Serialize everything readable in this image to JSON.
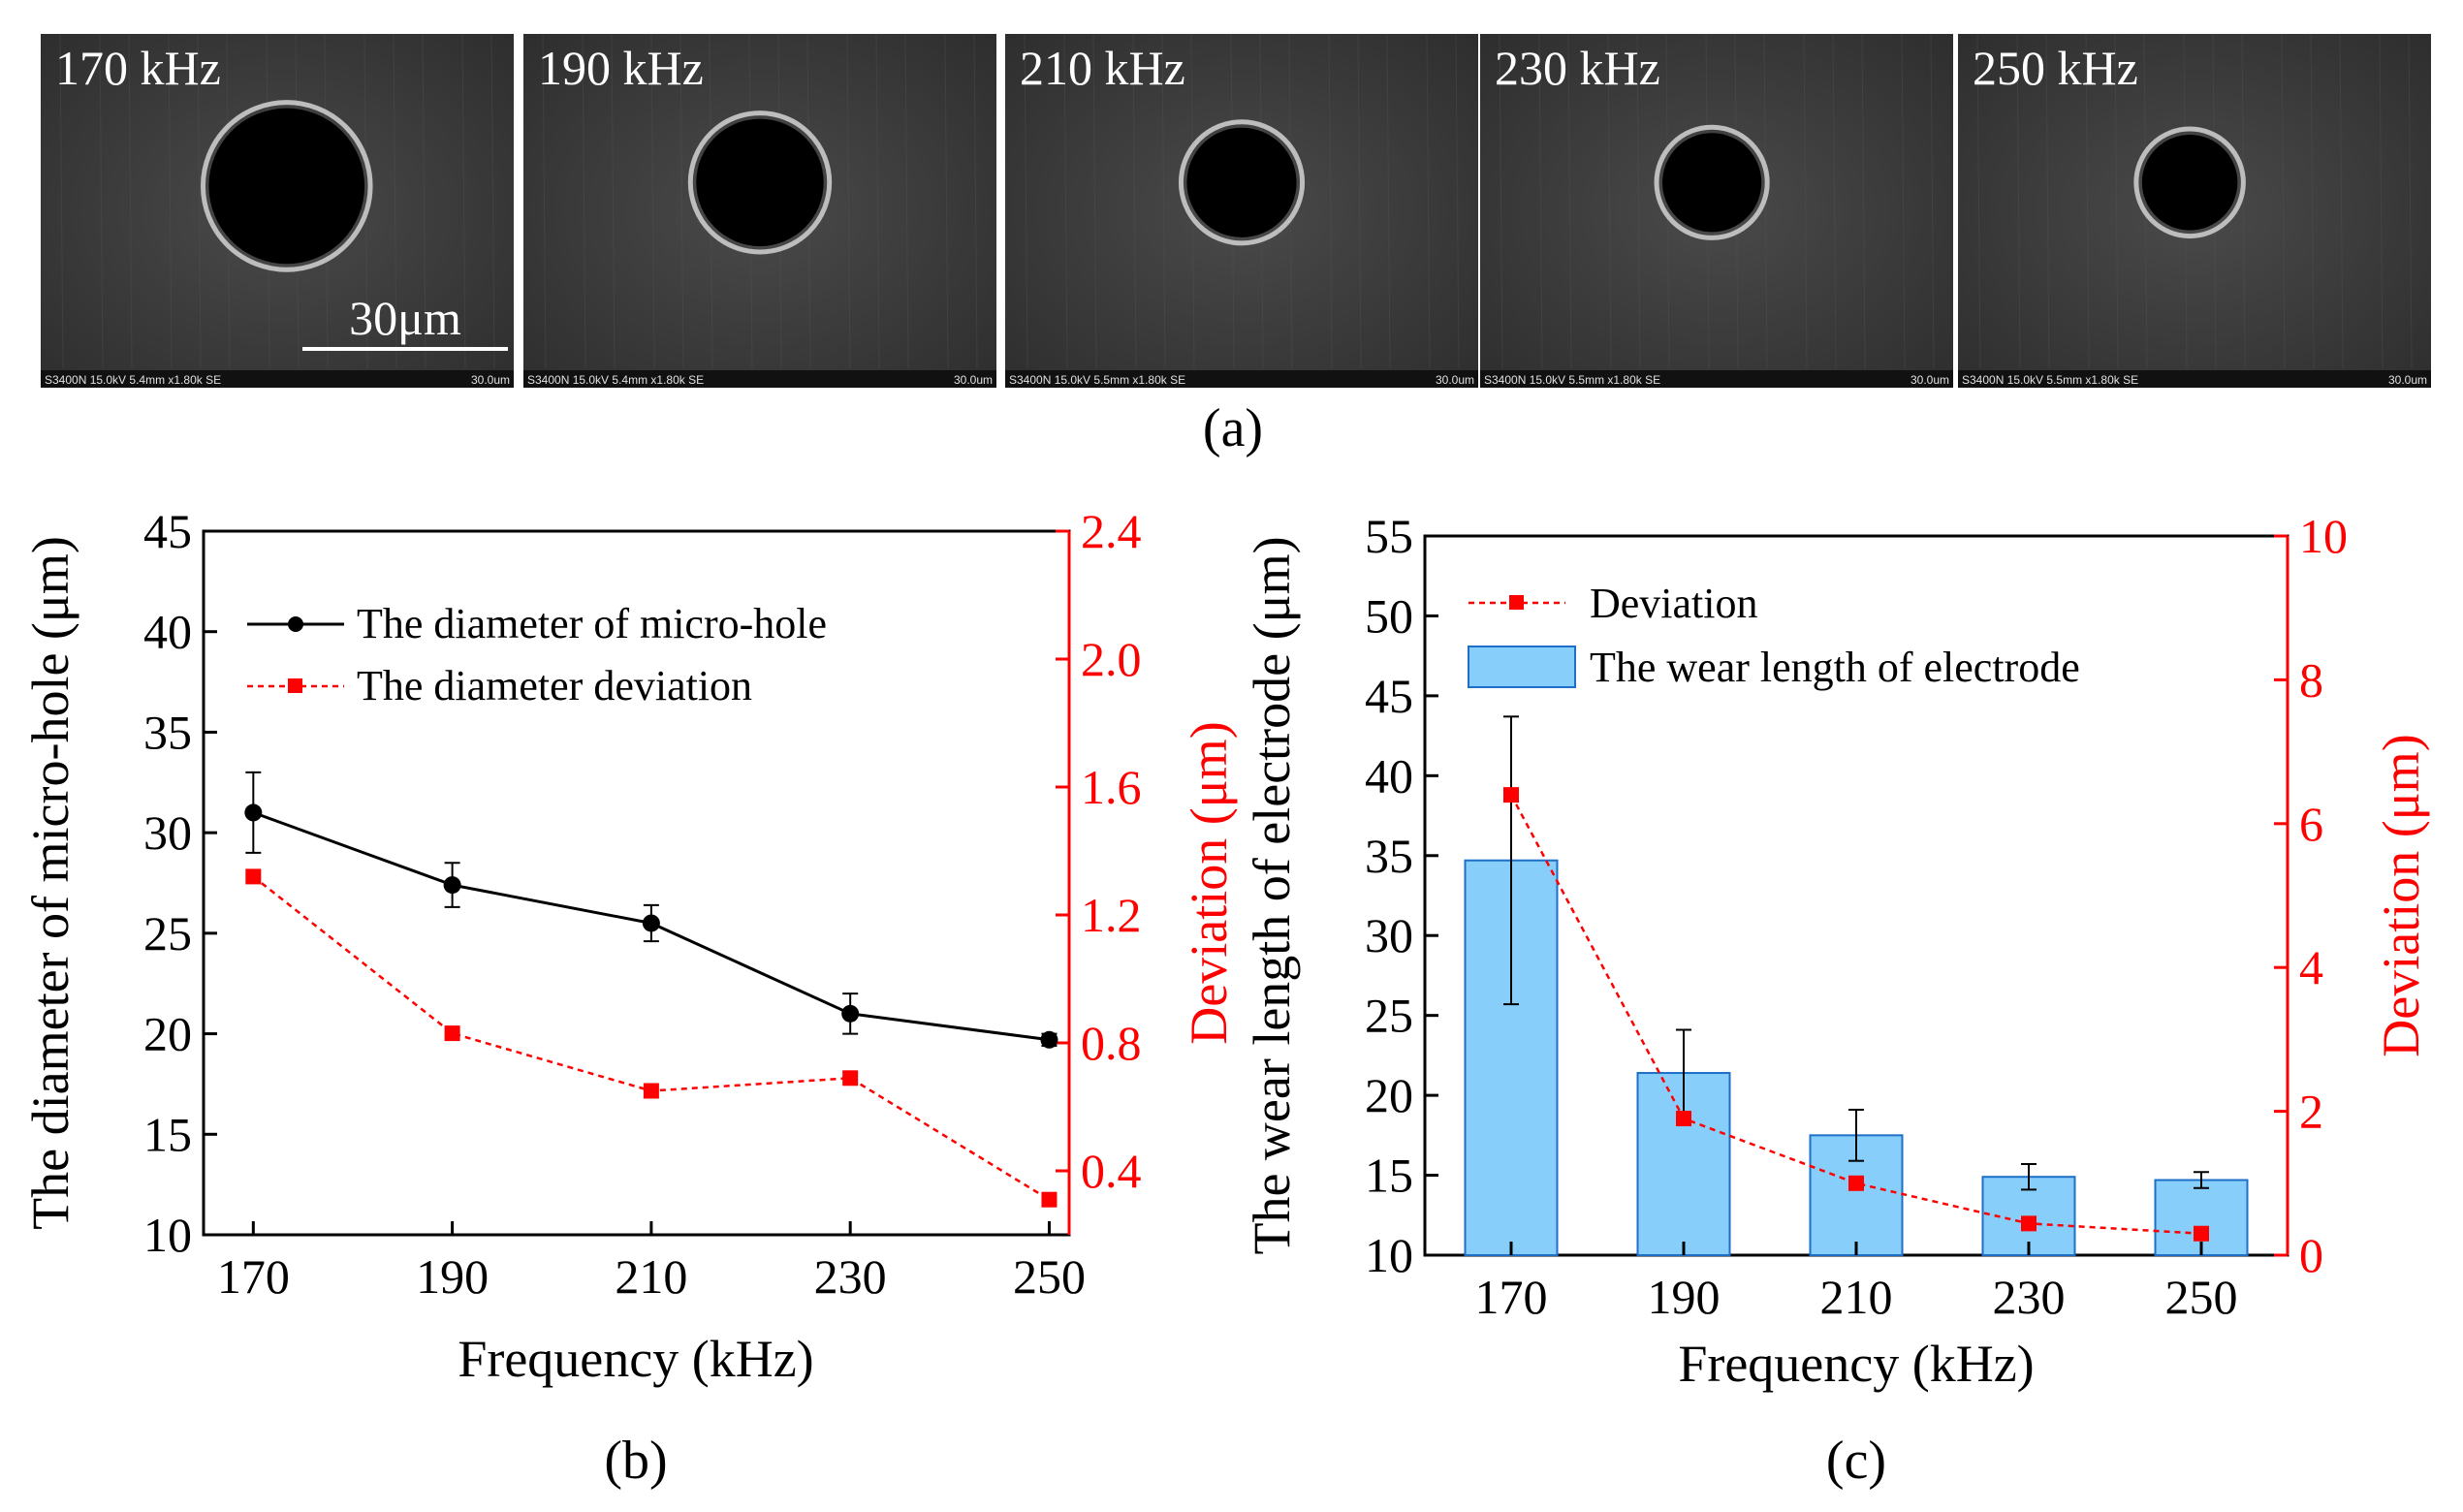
{
  "panel_a": {
    "label": "(a)",
    "scale_bar_label": "30μm",
    "images": [
      {
        "freq_label": "170 kHz",
        "info": "S3400N 15.0kV 5.4mm x1.80k SE",
        "scale": "30.0um",
        "hole": 0.44
      },
      {
        "freq_label": "190 kHz",
        "info": "S3400N 15.0kV 5.4mm x1.80k SE",
        "scale": "30.0um",
        "hole": 0.36
      },
      {
        "freq_label": "210 kHz",
        "info": "S3400N 15.0kV 5.5mm x1.80k SE",
        "scale": "30.0um",
        "hole": 0.31
      },
      {
        "freq_label": "230 kHz",
        "info": "S3400N 15.0kV 5.5mm x1.80k SE",
        "scale": "30.0um",
        "hole": 0.28
      },
      {
        "freq_label": "250 kHz",
        "info": "S3400N 15.0kV 5.5mm x1.80k SE",
        "scale": "30.0um",
        "hole": 0.27
      }
    ]
  },
  "chart_data": [
    {
      "type": "line",
      "panel_label": "(b)",
      "xlabel": "Frequency (kHz)",
      "ylabel": "The diameter of micro-hole (μm)",
      "y2label": "Deviation (μm)",
      "categories": [
        170,
        190,
        210,
        230,
        250
      ],
      "xlim": [
        165,
        252
      ],
      "ylim": [
        10,
        45
      ],
      "y2lim": [
        0.2,
        2.4
      ],
      "yticks": [
        10,
        15,
        20,
        25,
        30,
        35,
        40,
        45
      ],
      "y2ticks": [
        "0.4",
        "0.8",
        "1.2",
        "1.6",
        "2.0",
        "2.4"
      ],
      "legend_position": "top-left",
      "series": [
        {
          "name": "The diameter of micro-hole",
          "axis": "left",
          "color": "#000000",
          "values": [
            31.0,
            27.4,
            25.5,
            21.0,
            19.7
          ],
          "errors": [
            2.0,
            1.1,
            0.9,
            1.0,
            0.3
          ]
        },
        {
          "name": "The diameter deviation",
          "axis": "right",
          "color": "#ff0000",
          "values": [
            1.32,
            0.83,
            0.65,
            0.69,
            0.31
          ]
        }
      ]
    },
    {
      "type": "bar",
      "panel_label": "(c)",
      "xlabel": "Frequency (kHz)",
      "ylabel": "The wear length of electrode (μm)",
      "y2label": "Deviation (μm)",
      "categories": [
        170,
        190,
        210,
        230,
        250
      ],
      "ylim": [
        10,
        55
      ],
      "y2lim": [
        0,
        10
      ],
      "yticks": [
        10,
        15,
        20,
        25,
        30,
        35,
        40,
        45,
        50,
        55
      ],
      "y2ticks": [
        0,
        2,
        4,
        6,
        8,
        10
      ],
      "legend_position": "top-left",
      "series": [
        {
          "name": "The wear length of electrode",
          "type": "bar",
          "axis": "left",
          "color": "#87cefa",
          "values": [
            34.7,
            21.4,
            17.5,
            14.9,
            14.7
          ],
          "errors": [
            9.0,
            2.7,
            1.6,
            0.8,
            0.5
          ]
        },
        {
          "name": "Deviation",
          "type": "line",
          "axis": "right",
          "color": "#ff0000",
          "values": [
            6.4,
            1.9,
            1.0,
            0.44,
            0.3
          ]
        }
      ]
    }
  ]
}
